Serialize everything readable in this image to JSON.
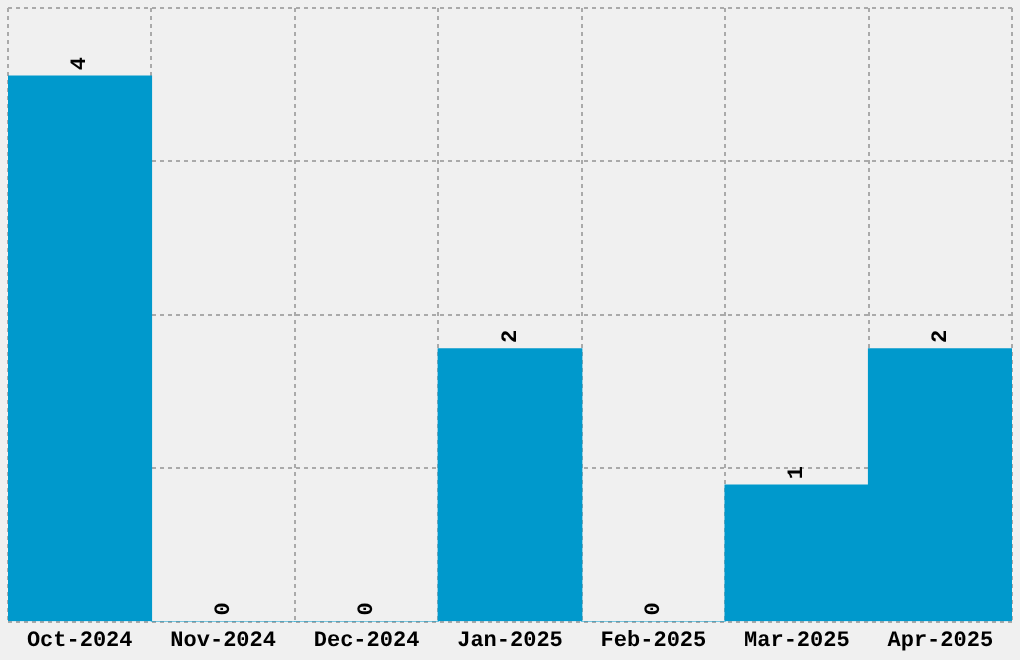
{
  "chart_data": {
    "type": "bar",
    "categories": [
      "Oct-2024",
      "Nov-2024",
      "Dec-2024",
      "Jan-2025",
      "Feb-2025",
      "Mar-2025",
      "Apr-2025"
    ],
    "values": [
      4,
      0,
      0,
      2,
      0,
      1,
      2
    ],
    "color": "#0099cc",
    "data_labels": true,
    "grid": true,
    "tick_labels": "x"
  }
}
